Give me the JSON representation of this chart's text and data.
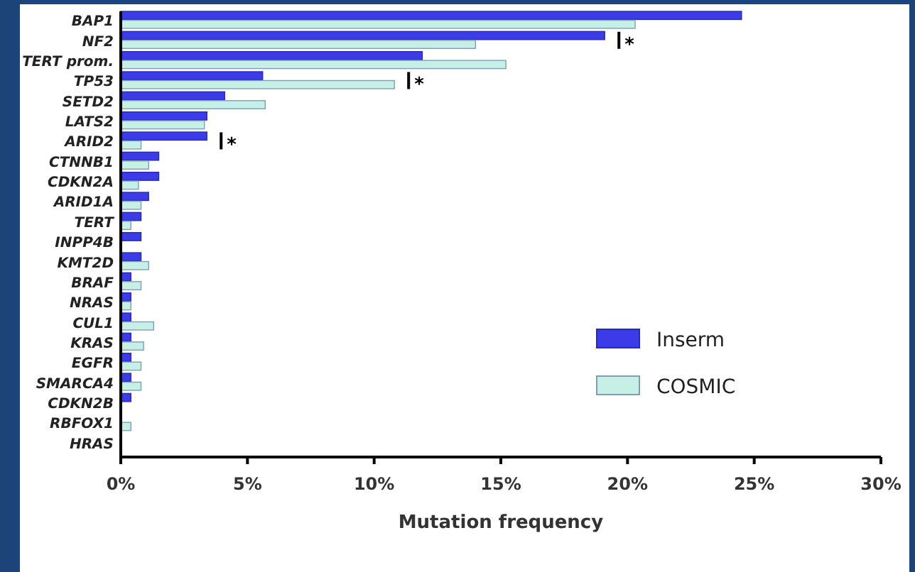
{
  "chart_data": {
    "type": "bar",
    "orientation": "horizontal",
    "xlabel": "Mutation frequency",
    "categories": [
      "BAP1",
      "NF2",
      "TERT prom.",
      "TP53",
      "SETD2",
      "LATS2",
      "ARID2",
      "CTNNB1",
      "CDKN2A",
      "ARID1A",
      "TERT",
      "INPP4B",
      "KMT2D",
      "BRAF",
      "NRAS",
      "CUL1",
      "KRAS",
      "EGFR",
      "SMARCA4",
      "CDKN2B",
      "RBFOX1",
      "HRAS"
    ],
    "series": [
      {
        "name": "Inserm",
        "color": "#3b3be8",
        "values": [
          24.5,
          19.1,
          11.9,
          5.6,
          4.1,
          3.4,
          3.4,
          1.5,
          1.5,
          1.1,
          0.8,
          0.8,
          0.8,
          0.4,
          0.4,
          0.4,
          0.4,
          0.4,
          0.4,
          0.4,
          0,
          0
        ]
      },
      {
        "name": "COSMIC",
        "color": "#c6efe6",
        "values": [
          20.3,
          14.0,
          15.2,
          10.8,
          5.7,
          3.3,
          0.8,
          1.1,
          0.7,
          0.8,
          0.4,
          0,
          1.1,
          0.8,
          0.4,
          1.3,
          0.9,
          0.8,
          0.8,
          0,
          0.4,
          0
        ]
      }
    ],
    "xlim": [
      0,
      30
    ],
    "xticks": [
      {
        "value": 0,
        "label": "0%"
      },
      {
        "value": 5,
        "label": "5%"
      },
      {
        "value": 10,
        "label": "10%"
      },
      {
        "value": 15,
        "label": "15%"
      },
      {
        "value": 20,
        "label": "20%"
      },
      {
        "value": 25,
        "label": "25%"
      },
      {
        "value": 30,
        "label": "30%"
      }
    ],
    "annotations": [
      {
        "text": "*",
        "x": 19.1,
        "y": "NF2"
      },
      {
        "text": "*",
        "x": 10.8,
        "y": "TP53"
      },
      {
        "text": "*",
        "x": 3.4,
        "y": "ARID2"
      }
    ],
    "legend": "bottom right",
    "grid": false
  }
}
